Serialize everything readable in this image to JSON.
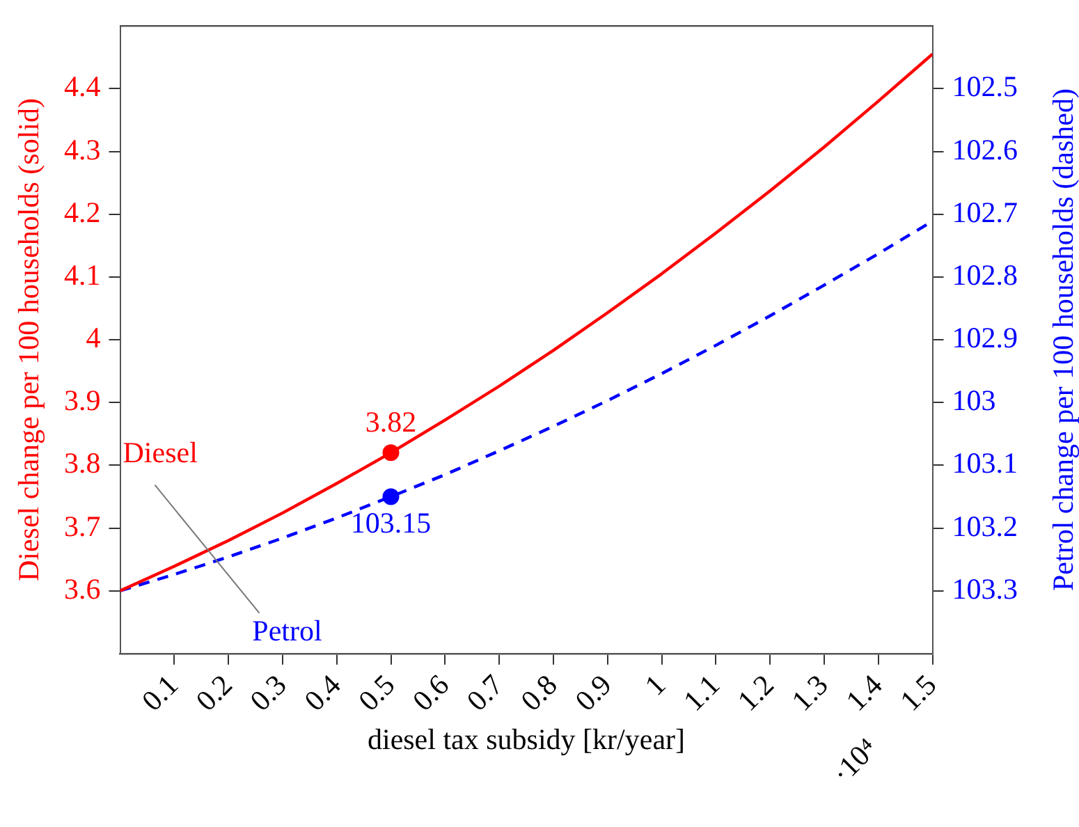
{
  "chart_data": {
    "type": "line",
    "xlabel": "diesel tax subsidy [kr/year]",
    "ylabel": "Diesel change per 100 households (solid)",
    "y2label": "Petrol change per 100 households (dashed)",
    "x": [
      0,
      0.1,
      0.2,
      0.3,
      0.4,
      0.5,
      0.6,
      0.7,
      0.8,
      0.9,
      1,
      1.1,
      1.2,
      1.3,
      1.4,
      1.5
    ],
    "series": [
      {
        "name": "Diesel",
        "color": "#ff0000",
        "line_style": "solid",
        "marker": "none",
        "values": [
          3.6,
          3.639,
          3.68,
          3.724,
          3.771,
          3.82,
          3.872,
          3.926,
          3.983,
          4.043,
          4.105,
          4.17,
          4.237,
          4.307,
          4.38,
          4.455
        ]
      },
      {
        "name": "Petrol",
        "color": "#0000ff",
        "line_style": "dashed",
        "marker": "none",
        "axis": "y2",
        "values": [
          103.3,
          103.274,
          103.246,
          103.216,
          103.184,
          103.15,
          103.115,
          103.077,
          103.038,
          102.997,
          102.954,
          102.909,
          102.862,
          102.813,
          102.763,
          102.711
        ]
      },
      {
        "type": "scatter",
        "color": "#ff0000",
        "marker": "circle",
        "x": [
          0.5
        ],
        "values": [
          3.82
        ],
        "value_labels": [
          "3.82"
        ]
      },
      {
        "type": "scatter",
        "color": "#0000ff",
        "marker": "circle",
        "axis": "y2",
        "x": [
          0.5
        ],
        "values": [
          103.15
        ],
        "value_labels": [
          "103.15"
        ]
      }
    ],
    "xlim": [
      0,
      1.5
    ],
    "xticks": [
      0.1,
      0.2,
      0.3,
      0.4,
      0.5,
      0.6,
      0.7,
      0.8,
      0.9,
      1,
      1.1,
      1.2,
      1.3,
      1.4,
      1.5
    ],
    "ylim": [
      3.5,
      4.5
    ],
    "yticks": [
      3.6,
      3.7,
      3.8,
      3.9,
      4,
      4.1,
      4.2,
      4.3,
      4.4
    ],
    "y2lim": [
      103.4,
      102.4
    ],
    "y2ticks": [
      102.5,
      102.6,
      102.7,
      102.8,
      102.9,
      103,
      103.1,
      103.2,
      103.3
    ],
    "annotations": [
      "·10⁴"
    ],
    "grid": false,
    "legend": false
  }
}
